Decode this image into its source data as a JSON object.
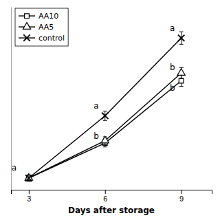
{
  "chart_data": {
    "type": "line",
    "x": [
      3,
      6,
      9
    ],
    "series": [
      {
        "name": "AA10",
        "values": [
          0.1,
          0.55,
          1.35
        ],
        "errors": [
          0.04,
          0.05,
          0.07
        ],
        "marker": "square"
      },
      {
        "name": "AA5",
        "values": [
          0.1,
          0.58,
          1.45
        ],
        "errors": [
          0.04,
          0.05,
          0.07
        ],
        "marker": "triangle"
      },
      {
        "name": "control",
        "values": [
          0.1,
          0.9,
          1.9
        ],
        "errors": [
          0.04,
          0.06,
          0.08
        ],
        "marker": "x"
      }
    ],
    "color": "#000000",
    "x_label": "Days after storage",
    "xlim": [
      2.3,
      10.2
    ],
    "xticks": [
      3,
      6,
      9
    ],
    "ylim": [
      -0.05,
      2.3
    ],
    "tick_labels": "x",
    "grid": false,
    "legend": "upper left",
    "annotations": [
      {
        "text": "a",
        "x": 2.32,
        "y": 0.2
      },
      {
        "text": "a",
        "x": 5.55,
        "y": 0.99
      },
      {
        "text": "b",
        "x": 5.55,
        "y": 0.6
      },
      {
        "text": "a",
        "x": 8.55,
        "y": 1.99
      },
      {
        "text": "b",
        "x": 8.55,
        "y": 1.49
      },
      {
        "text": "b",
        "x": 8.55,
        "y": 1.22
      }
    ]
  }
}
